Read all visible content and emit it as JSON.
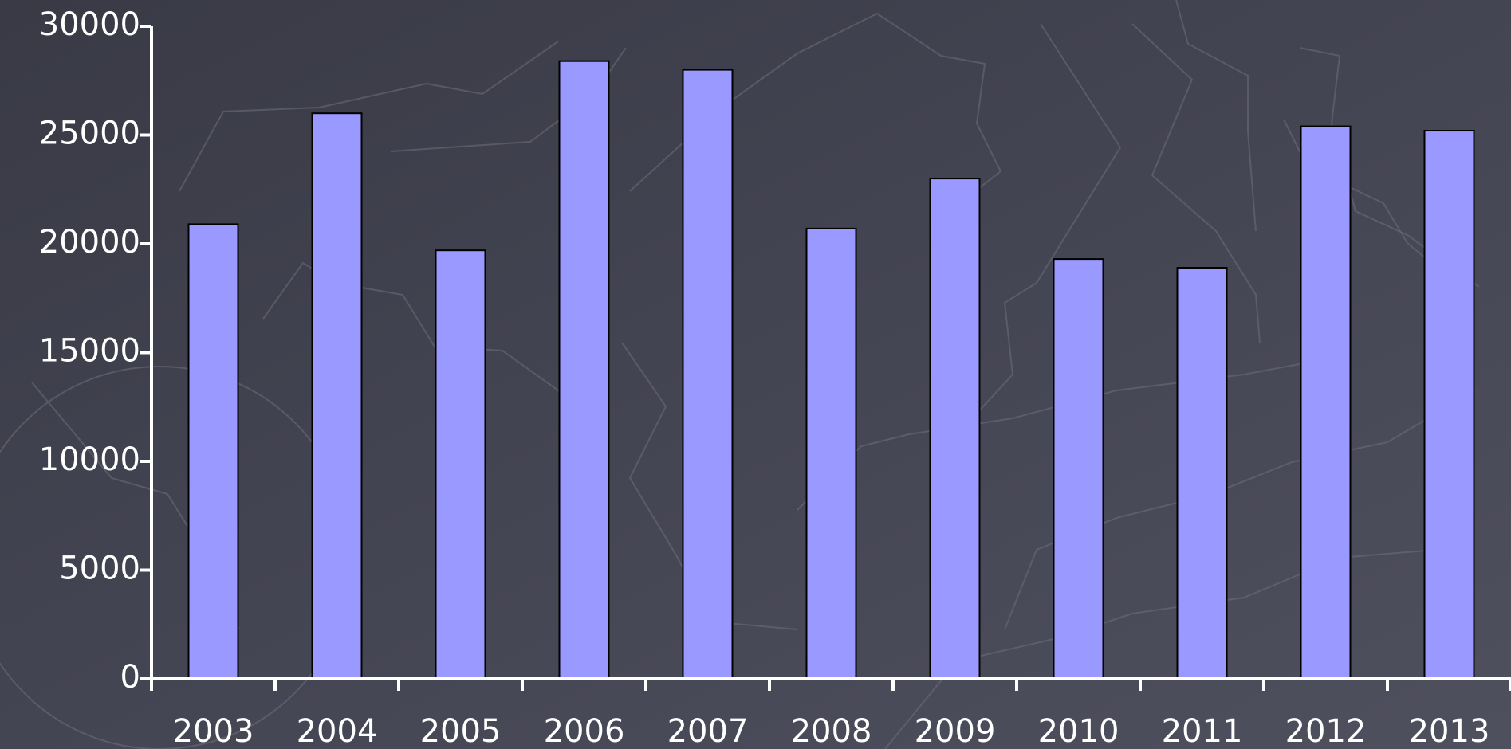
{
  "chart_data": {
    "type": "bar",
    "categories": [
      "2003",
      "2004",
      "2005",
      "2006",
      "2007",
      "2008",
      "2009",
      "2010",
      "2011",
      "2012",
      "2013"
    ],
    "values": [
      20900,
      26000,
      19700,
      28400,
      28000,
      20700,
      23000,
      19300,
      18900,
      25400,
      25200
    ],
    "color": "#9999ff",
    "ylim": [
      0,
      30000
    ],
    "yticks": [
      0,
      5000,
      10000,
      15000,
      20000,
      25000,
      30000
    ],
    "grid": false
  }
}
